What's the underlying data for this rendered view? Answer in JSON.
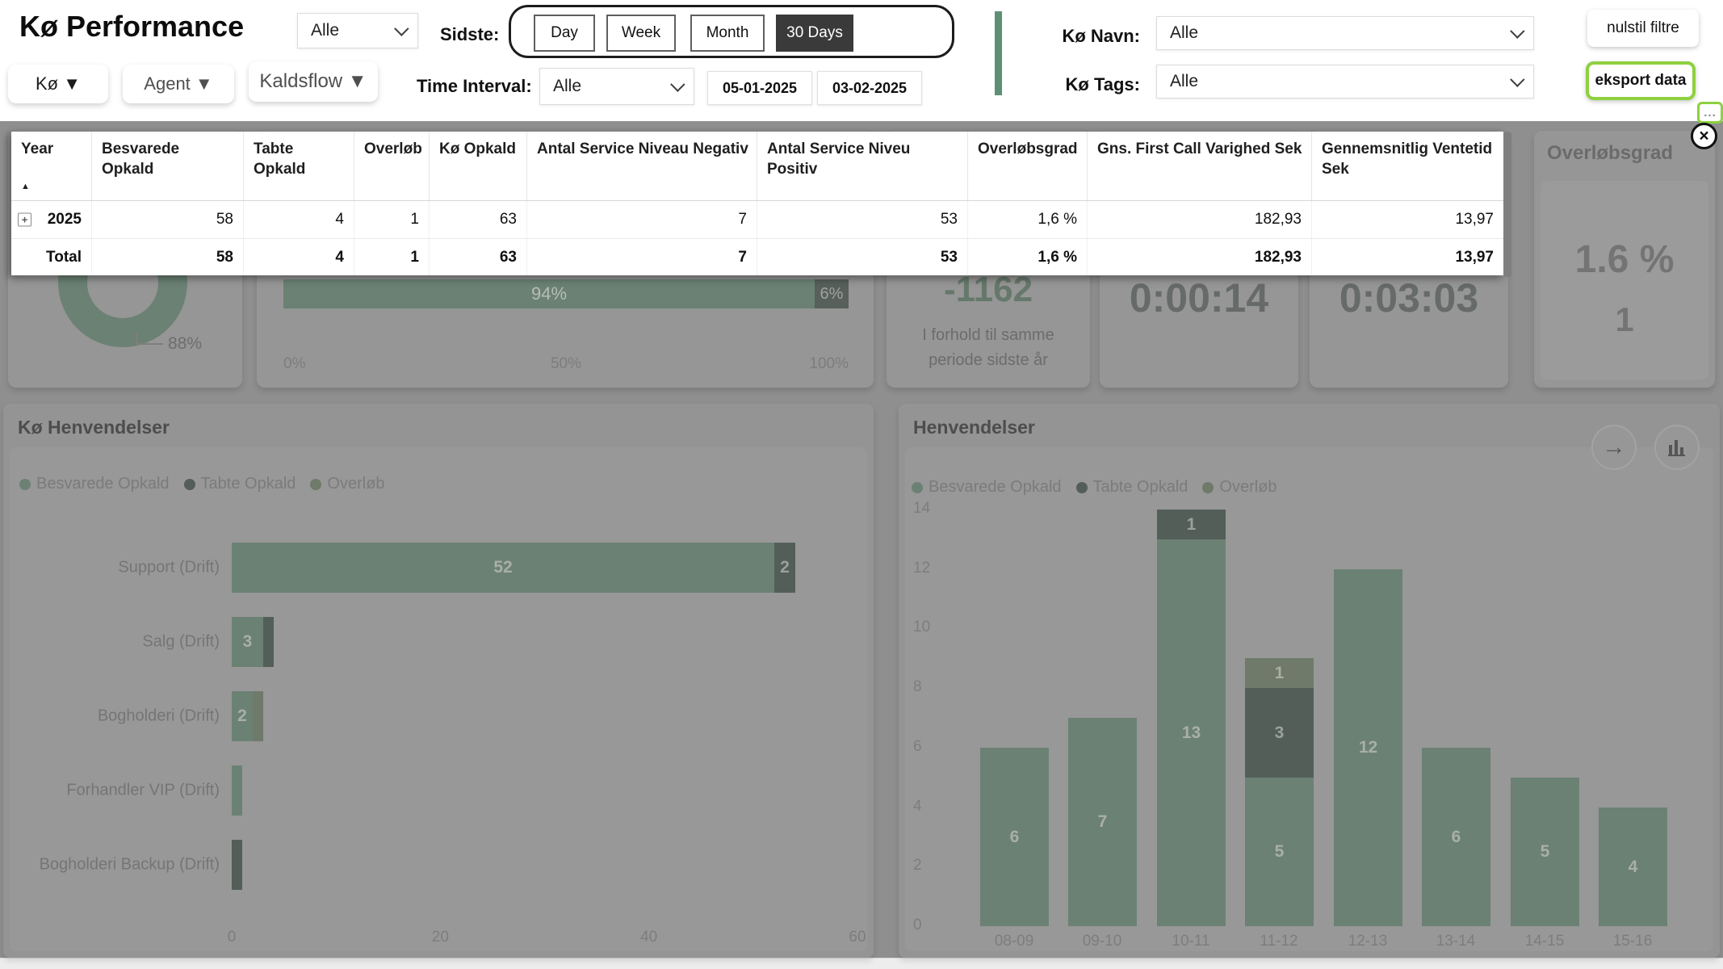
{
  "header": {
    "title": "Kø Performance",
    "view_dropdown_value": "Alle",
    "sidste_label": "Sidste:",
    "period_buttons": [
      "Day",
      "Week",
      "Month",
      "30 Days"
    ],
    "period_selected": "30 Days",
    "pills": [
      {
        "label": "Kø ▼"
      },
      {
        "label": "Agent ▼"
      },
      {
        "label": "Kaldsflow ▼"
      }
    ],
    "time_interval_label": "Time Interval:",
    "time_interval_value": "Alle",
    "date_from": "05-01-2025",
    "date_to": "03-02-2025",
    "ko_navn_label": "Kø Navn:",
    "ko_navn_value": "Alle",
    "ko_tags_label": "Kø Tags:",
    "ko_tags_value": "Alle",
    "reset_button": "nulstil filtre",
    "export_button": "eksport data",
    "more_button": "...",
    "close_button": "×"
  },
  "table": {
    "columns": [
      "Year",
      "Besvarede Opkald",
      "Tabte Opkald",
      "Overløb",
      "Kø Opkald",
      "Antal Service Niveau Negativ",
      "Antal Service Niveu Positiv",
      "Overløbsgrad",
      "Gns. First Call Varighed Sek",
      "Gennemsnitlig Ventetid Sek"
    ],
    "rows": [
      {
        "year": "2025",
        "values": [
          "58",
          "4",
          "1",
          "63",
          "7",
          "53",
          "1,6 %",
          "182,93",
          "13,97"
        ]
      }
    ],
    "total": {
      "label": "Total",
      "values": [
        "58",
        "4",
        "1",
        "63",
        "7",
        "53",
        "1,6 %",
        "182,93",
        "13,97"
      ]
    }
  },
  "kpi": {
    "donut_value": "88%",
    "sla_bar": {
      "answered_pct": "94%",
      "lost_pct": "6%",
      "axis": [
        "0%",
        "50%",
        "100%"
      ]
    },
    "delta": {
      "value": "-1162",
      "caption_line1": "I forhold til samme",
      "caption_line2": "periode sidste år"
    },
    "avg_answer_time": "0:00:14",
    "avg_wait_time": "0:03:03",
    "overlob_card": {
      "title": "Overløbsgrad",
      "value": "1.6 %",
      "count": "1"
    }
  },
  "charts": {
    "left_title": "Kø Henvendelser",
    "right_title": "Henvendelser",
    "legend": [
      "Besvarede Opkald",
      "Tabte Opkald",
      "Overløb"
    ]
  },
  "chart_data": [
    {
      "type": "bar",
      "orientation": "horizontal",
      "stacked": true,
      "title": "Kø Henvendelser",
      "categories": [
        "Support (Drift)",
        "Salg (Drift)",
        "Bogholderi (Drift)",
        "Forhandler VIP (Drift)",
        "Bogholderi Backup (Drift)"
      ],
      "series": [
        {
          "name": "Besvarede Opkald",
          "values": [
            52,
            3,
            2,
            1,
            0
          ]
        },
        {
          "name": "Tabte Opkald",
          "values": [
            2,
            1,
            0,
            0,
            1
          ]
        },
        {
          "name": "Overløb",
          "values": [
            0,
            0,
            1,
            0,
            0
          ]
        }
      ],
      "xlim": [
        0,
        60
      ],
      "xticks": [
        0,
        20,
        40,
        60
      ],
      "legend_position": "top"
    },
    {
      "type": "bar",
      "orientation": "vertical",
      "stacked": true,
      "title": "Henvendelser",
      "categories": [
        "08-09",
        "09-10",
        "10-11",
        "11-12",
        "12-13",
        "13-14",
        "14-15",
        "15-16"
      ],
      "series": [
        {
          "name": "Besvarede Opkald",
          "values": [
            6,
            7,
            13,
            5,
            12,
            6,
            5,
            4
          ]
        },
        {
          "name": "Tabte Opkald",
          "values": [
            0,
            0,
            1,
            3,
            0,
            0,
            0,
            0
          ]
        },
        {
          "name": "Overløb",
          "values": [
            0,
            0,
            0,
            1,
            0,
            0,
            0,
            0
          ]
        }
      ],
      "ylim": [
        0,
        14
      ],
      "yticks": [
        0,
        2,
        4,
        6,
        8,
        10,
        12,
        14
      ],
      "legend_position": "top"
    }
  ],
  "colors": {
    "besvarede": "#6b8174",
    "tabte": "#545e59",
    "overlob": "#6f7a6a",
    "accent_green": "#5e8f74",
    "lime_border": "#8ed03f",
    "selected_dark": "#3a3a3a"
  }
}
